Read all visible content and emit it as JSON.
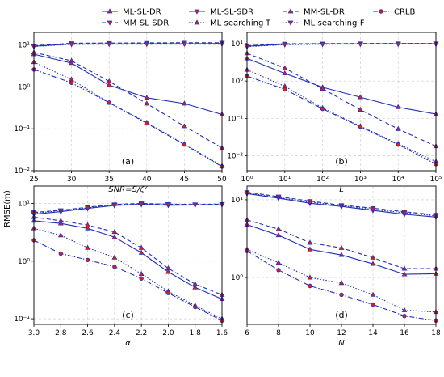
{
  "figure": {
    "shared_ylabel": "RMSE(m)",
    "legend": {
      "placement": "top-center",
      "entries": [
        "ML-SL-DR",
        "ML-SL-SDR",
        "MM-SL-DR",
        "MM-SL-SDR",
        "ML-searching-T",
        "ML-searching-F",
        "CRLB"
      ]
    }
  },
  "styles": [
    {
      "color": "#1f2fb8",
      "dash": "",
      "marker": "tri-up"
    },
    {
      "color": "#1f2fb8",
      "dash": "",
      "marker": "tri-down"
    },
    {
      "color": "#1f2fb8",
      "dash": "5,3",
      "marker": "tri-up"
    },
    {
      "color": "#1f2fb8",
      "dash": "5,3",
      "marker": "tri-down"
    },
    {
      "color": "#1f2fb8",
      "dash": "1.5,2",
      "marker": "tri-up"
    },
    {
      "color": "#1f2fb8",
      "dash": "1.5,2",
      "marker": "tri-down"
    },
    {
      "color": "#1f2fb8",
      "dash": "6,2,1.5,2",
      "marker": "circle"
    }
  ],
  "marker_fill": "#d62020",
  "chart_data": [
    {
      "type": "line",
      "panel_label": "(a)",
      "xlabel": "SNR=S/ζ²",
      "ylabel": "",
      "xscale": "linear",
      "yscale": "log",
      "xlim": [
        25,
        50
      ],
      "ylim": [
        0.01,
        20
      ],
      "xticks": [
        25,
        30,
        35,
        40,
        45,
        50
      ],
      "xticklabels": [
        "25",
        "30",
        "35",
        "40",
        "45",
        "50"
      ],
      "yticks": [
        0.01,
        0.1,
        1,
        10
      ],
      "yticklabels": [
        "10⁻²",
        "10⁻¹",
        "10⁰",
        "10¹"
      ],
      "grid": true,
      "x": [
        25,
        30,
        35,
        40,
        45,
        50
      ],
      "series": [
        {
          "name": "ML-SL-DR",
          "values": [
            6.0,
            3.7,
            1.1,
            0.55,
            0.4,
            0.22
          ]
        },
        {
          "name": "ML-SL-SDR",
          "values": [
            9.3,
            10.6,
            10.6,
            10.7,
            10.7,
            10.9
          ]
        },
        {
          "name": "MM-SL-DR",
          "values": [
            6.6,
            4.2,
            1.35,
            0.4,
            0.115,
            0.035
          ]
        },
        {
          "name": "MM-SL-SDR",
          "values": [
            9.6,
            11.0,
            11.1,
            11.2,
            11.3,
            11.3
          ]
        },
        {
          "name": "ML-searching-T",
          "values": [
            3.9,
            1.5,
            0.42,
            0.14,
            0.043,
            0.013
          ]
        },
        {
          "name": "ML-searching-F",
          "values": [
            9.2,
            10.4,
            10.5,
            10.5,
            10.6,
            10.6
          ]
        },
        {
          "name": "CRLB",
          "values": [
            2.6,
            1.25,
            0.42,
            0.135,
            0.042,
            0.0125
          ]
        }
      ]
    },
    {
      "type": "line",
      "panel_label": "(b)",
      "xlabel": "L",
      "ylabel": "",
      "xscale": "log",
      "yscale": "log",
      "xlim": [
        1,
        100000
      ],
      "ylim": [
        0.004,
        20
      ],
      "xticks": [
        1,
        10,
        100,
        1000,
        10000,
        100000
      ],
      "xticklabels": [
        "10⁰",
        "10¹",
        "10²",
        "10³",
        "10⁴",
        "10⁵"
      ],
      "yticks": [
        0.01,
        0.1,
        1,
        10
      ],
      "yticklabels": [
        "10⁻²",
        "10⁻¹",
        "10⁰",
        "10¹"
      ],
      "grid": true,
      "x": [
        1,
        10,
        100,
        1000,
        10000,
        100000
      ],
      "series": [
        {
          "name": "ML-SL-DR",
          "values": [
            4.0,
            1.6,
            0.68,
            0.37,
            0.2,
            0.13
          ]
        },
        {
          "name": "ML-SL-SDR",
          "values": [
            8.5,
            9.6,
            9.8,
            9.8,
            9.9,
            9.9
          ]
        },
        {
          "name": "MM-SL-DR",
          "values": [
            5.5,
            2.2,
            0.62,
            0.17,
            0.052,
            0.018
          ]
        },
        {
          "name": "MM-SL-SDR",
          "values": [
            8.8,
            9.9,
            10.0,
            10.1,
            10.1,
            10.1
          ]
        },
        {
          "name": "ML-searching-T",
          "values": [
            2.0,
            0.72,
            0.19,
            0.062,
            0.021,
            0.007
          ]
        },
        {
          "name": "ML-searching-F",
          "values": [
            8.3,
            9.4,
            9.6,
            9.7,
            9.7,
            9.7
          ]
        },
        {
          "name": "CRLB",
          "values": [
            1.35,
            0.6,
            0.18,
            0.06,
            0.02,
            0.006
          ]
        }
      ]
    },
    {
      "type": "line",
      "panel_label": "(c)",
      "xlabel": "α",
      "ylabel": "",
      "xscale": "linear",
      "yscale": "log",
      "xlim": [
        3.0,
        1.6
      ],
      "ylim": [
        0.08,
        20
      ],
      "xticks": [
        3.0,
        2.8,
        2.6,
        2.4,
        2.2,
        2.0,
        1.8,
        1.6
      ],
      "xticklabels": [
        "3.0",
        "2.8",
        "2.6",
        "2.4",
        "2.2",
        "2.0",
        "1.8",
        "1.6"
      ],
      "yticks": [
        0.1,
        1,
        10
      ],
      "yticklabels": [
        "10⁻¹",
        "10⁰",
        "10¹"
      ],
      "grid": true,
      "x": [
        3.0,
        2.8,
        2.6,
        2.4,
        2.2,
        2.0,
        1.8,
        1.6
      ],
      "series": [
        {
          "name": "ML-SL-DR",
          "values": [
            5.0,
            4.5,
            3.7,
            2.6,
            1.4,
            0.65,
            0.35,
            0.22
          ]
        },
        {
          "name": "ML-SL-SDR",
          "values": [
            6.5,
            7.2,
            8.2,
            9.2,
            9.6,
            9.3,
            9.4,
            9.5
          ]
        },
        {
          "name": "MM-SL-DR",
          "values": [
            5.8,
            5.0,
            4.2,
            3.2,
            1.7,
            0.75,
            0.4,
            0.26
          ]
        },
        {
          "name": "MM-SL-SDR",
          "values": [
            7.0,
            7.6,
            8.6,
            9.6,
            10.0,
            9.7,
            9.6,
            9.7
          ]
        },
        {
          "name": "ML-searching-T",
          "values": [
            3.7,
            2.8,
            1.7,
            1.15,
            0.6,
            0.3,
            0.17,
            0.1
          ]
        },
        {
          "name": "ML-searching-F",
          "values": [
            6.8,
            7.5,
            8.4,
            9.4,
            9.8,
            9.6,
            9.5,
            9.6
          ]
        },
        {
          "name": "CRLB",
          "values": [
            2.3,
            1.35,
            1.05,
            0.8,
            0.5,
            0.28,
            0.16,
            0.093
          ]
        }
      ]
    },
    {
      "type": "line",
      "panel_label": "(d)",
      "xlabel": "N",
      "ylabel": "",
      "xscale": "linear",
      "yscale": "log",
      "xlim": [
        6,
        18
      ],
      "ylim": [
        0.25,
        15
      ],
      "xticks": [
        6,
        8,
        10,
        12,
        14,
        16,
        18
      ],
      "xticklabels": [
        "6",
        "8",
        "10",
        "12",
        "14",
        "16",
        "18"
      ],
      "yticks": [
        1,
        10
      ],
      "yticklabels": [
        "10⁰",
        "10¹"
      ],
      "grid": true,
      "x": [
        6,
        8,
        10,
        12,
        14,
        16,
        18
      ],
      "series": [
        {
          "name": "ML-SL-DR",
          "values": [
            4.8,
            3.5,
            2.3,
            1.95,
            1.5,
            1.1,
            1.12
          ]
        },
        {
          "name": "ML-SL-SDR",
          "values": [
            12.0,
            10.5,
            9.0,
            8.2,
            7.3,
            6.5,
            6.0
          ]
        },
        {
          "name": "MM-SL-DR",
          "values": [
            5.5,
            4.2,
            2.8,
            2.4,
            1.8,
            1.3,
            1.3
          ]
        },
        {
          "name": "MM-SL-SDR",
          "values": [
            12.5,
            11.0,
            9.6,
            8.5,
            7.8,
            7.0,
            6.4
          ]
        },
        {
          "name": "ML-searching-T",
          "values": [
            2.3,
            1.55,
            1.0,
            0.85,
            0.6,
            0.38,
            0.36
          ]
        },
        {
          "name": "ML-searching-F",
          "values": [
            12.2,
            10.7,
            9.3,
            8.4,
            7.5,
            6.8,
            6.2
          ]
        },
        {
          "name": "CRLB",
          "values": [
            2.2,
            1.25,
            0.78,
            0.6,
            0.45,
            0.32,
            0.28
          ]
        }
      ]
    }
  ]
}
